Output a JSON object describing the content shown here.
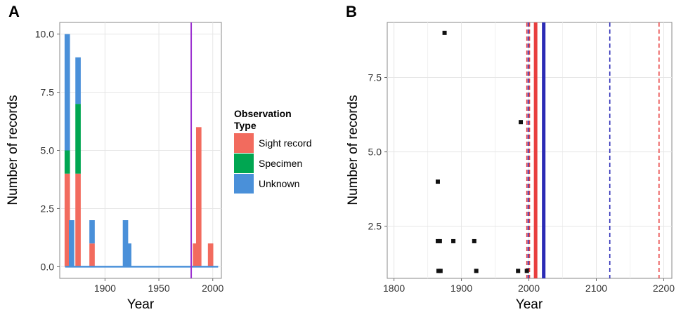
{
  "panels": {
    "a": {
      "letter": "A"
    },
    "b": {
      "letter": "B"
    }
  },
  "legend": {
    "title_line1": "Observation",
    "title_line2": "Type",
    "items": [
      {
        "label": "Sight record",
        "color": "#f26b5e"
      },
      {
        "label": "Specimen",
        "color": "#00a651"
      },
      {
        "label": "Unknown",
        "color": "#4a90d9"
      }
    ]
  },
  "chart_data": [
    {
      "type": "bar",
      "panel": "A",
      "stacked": true,
      "xlabel": "Year",
      "ylabel": "Number of records",
      "xlim": [
        1858,
        2008
      ],
      "ylim": [
        -0.5,
        10.5
      ],
      "x_ticks": [
        {
          "value": 1900,
          "label": "1900"
        },
        {
          "value": 1950,
          "label": "1950"
        },
        {
          "value": 2000,
          "label": "2000"
        }
      ],
      "y_ticks": [
        {
          "value": 0,
          "label": "0.0"
        },
        {
          "value": 2.5,
          "label": "2.5"
        },
        {
          "value": 5,
          "label": "5.0"
        },
        {
          "value": 7.5,
          "label": "7.5"
        },
        {
          "value": 10,
          "label": "10.0"
        }
      ],
      "bin_width": 5,
      "bars": [
        {
          "x": 1865,
          "sight": 4,
          "specimen": 1,
          "unknown": 5
        },
        {
          "x": 1869,
          "sight": 0,
          "specimen": 0,
          "unknown": 2
        },
        {
          "x": 1875,
          "sight": 4,
          "specimen": 3,
          "unknown": 2
        },
        {
          "x": 1888,
          "sight": 1,
          "specimen": 0,
          "unknown": 1
        },
        {
          "x": 1919,
          "sight": 0,
          "specimen": 0,
          "unknown": 2
        },
        {
          "x": 1922,
          "sight": 0,
          "specimen": 0,
          "unknown": 1
        },
        {
          "x": 1984,
          "sight": 1,
          "specimen": 0,
          "unknown": 0
        },
        {
          "x": 1987,
          "sight": 6,
          "specimen": 0,
          "unknown": 0
        },
        {
          "x": 1998,
          "sight": 1,
          "specimen": 0,
          "unknown": 0
        }
      ],
      "baseline": {
        "from": 1863,
        "to": 2005,
        "value": 0,
        "color": "#4a90d9"
      },
      "vline": {
        "x": 1980,
        "color": "#9b30d0"
      },
      "grid": true,
      "legend": "right"
    },
    {
      "type": "scatter",
      "panel": "B",
      "xlabel": "Year",
      "ylabel": "Number of records",
      "xlim": [
        1790,
        2212
      ],
      "ylim": [
        0.75,
        9.35
      ],
      "x_ticks": [
        {
          "value": 1800,
          "label": "1800"
        },
        {
          "value": 1900,
          "label": "1900"
        },
        {
          "value": 2000,
          "label": "2000"
        },
        {
          "value": 2100,
          "label": "2100"
        },
        {
          "value": 2200,
          "label": "2200"
        }
      ],
      "y_ticks": [
        {
          "value": 2.5,
          "label": "2.5"
        },
        {
          "value": 5,
          "label": "5.0"
        },
        {
          "value": 7.5,
          "label": "7.5"
        }
      ],
      "points": [
        {
          "x": 1875,
          "y": 9
        },
        {
          "x": 1988,
          "y": 6
        },
        {
          "x": 1865,
          "y": 4
        },
        {
          "x": 1865,
          "y": 2
        },
        {
          "x": 1868,
          "y": 2
        },
        {
          "x": 1888,
          "y": 2
        },
        {
          "x": 1919,
          "y": 2
        },
        {
          "x": 1866,
          "y": 1
        },
        {
          "x": 1869,
          "y": 1
        },
        {
          "x": 1922,
          "y": 1
        },
        {
          "x": 1984,
          "y": 1
        },
        {
          "x": 1997,
          "y": 1
        }
      ],
      "vlines": [
        {
          "x": 1997,
          "color": "#e83e3e",
          "style": "dashed"
        },
        {
          "x": 1999,
          "color": "#2b2bb5",
          "style": "dashed"
        },
        {
          "x": 2001,
          "color": "#e83e3e",
          "style": "dashed"
        },
        {
          "x": 2010,
          "color": "#e83e3e",
          "style": "solid"
        },
        {
          "x": 2022,
          "color": "#2b2bb5",
          "style": "solid"
        },
        {
          "x": 2120,
          "color": "#2b2bb5",
          "style": "dashed"
        },
        {
          "x": 2193,
          "color": "#e83e3e",
          "style": "dashed"
        }
      ],
      "grid": true
    }
  ]
}
